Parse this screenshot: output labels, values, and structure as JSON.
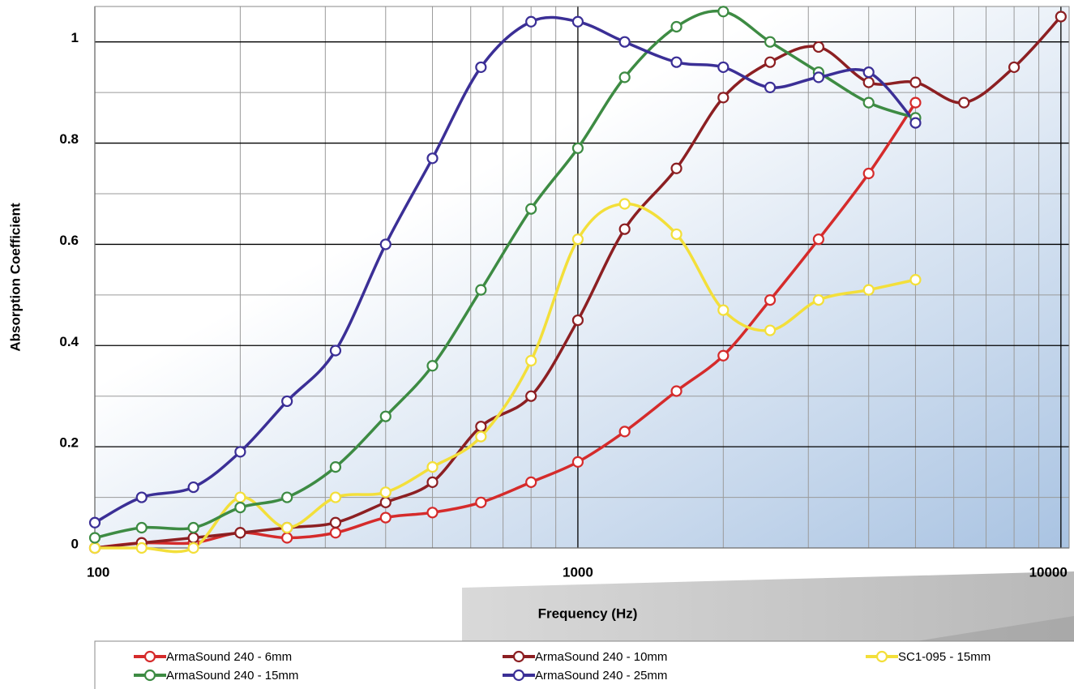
{
  "chart_data": {
    "type": "line",
    "x_label": "Frequency (Hz)",
    "y_label": "Absorption Coefficient",
    "x": [
      100,
      125,
      160,
      200,
      250,
      315,
      400,
      500,
      630,
      800,
      1000,
      1250,
      1600,
      2000,
      2500,
      3150,
      4000,
      5000,
      6300,
      8000,
      10000
    ],
    "series": [
      {
        "name": "ArmaSound 240 - 6mm",
        "color": "#d52b2b",
        "values": [
          0,
          0.01,
          0.01,
          0.03,
          0.02,
          0.03,
          0.06,
          0.07,
          0.09,
          0.13,
          0.17,
          0.23,
          0.31,
          0.38,
          0.49,
          0.61,
          0.74,
          0.88,
          null,
          null,
          null
        ]
      },
      {
        "name": "ArmaSound 240 - 10mm",
        "color": "#8c1f22",
        "values": [
          0,
          0.01,
          0.02,
          0.03,
          0.04,
          0.05,
          0.09,
          0.13,
          0.24,
          0.3,
          0.45,
          0.63,
          0.75,
          0.89,
          0.96,
          0.99,
          0.92,
          0.92,
          0.88,
          0.95,
          1.05
        ]
      },
      {
        "name": "SC1-095 - 15mm",
        "color": "#f3df3a",
        "values": [
          0,
          0,
          0,
          0.1,
          0.04,
          0.1,
          0.11,
          0.16,
          0.22,
          0.37,
          0.61,
          0.68,
          0.62,
          0.47,
          0.43,
          0.49,
          0.51,
          0.53,
          null,
          null,
          null
        ]
      },
      {
        "name": "ArmaSound 240 - 15mm",
        "color": "#3d8b43",
        "values": [
          0.02,
          0.04,
          0.04,
          0.08,
          0.1,
          0.16,
          0.26,
          0.36,
          0.51,
          0.67,
          0.79,
          0.93,
          1.03,
          1.06,
          1,
          0.94,
          0.88,
          0.85,
          null,
          null,
          null
        ]
      },
      {
        "name": "ArmaSound 240 - 25mm",
        "color": "#3b2f96",
        "values": [
          0.05,
          0.1,
          0.12,
          0.19,
          0.29,
          0.39,
          0.6,
          0.77,
          0.95,
          1.04,
          1.04,
          1,
          0.96,
          0.95,
          0.91,
          0.93,
          0.94,
          0.84,
          null,
          null,
          null
        ]
      }
    ],
    "xlim": [
      100,
      10400
    ],
    "ylim": [
      0,
      1.07
    ],
    "xticks": [
      100,
      1000,
      10000
    ],
    "yticks": [
      0,
      0.2,
      0.4,
      0.6,
      0.8,
      1
    ],
    "xminorticks": [
      200,
      300,
      400,
      500,
      600,
      700,
      800,
      900,
      2000,
      3000,
      4000,
      5000,
      6000,
      7000,
      8000,
      9000
    ],
    "yminorticks": [
      0.1,
      0.3,
      0.5,
      0.7,
      0.9
    ],
    "xscale": "log",
    "grid": true
  }
}
